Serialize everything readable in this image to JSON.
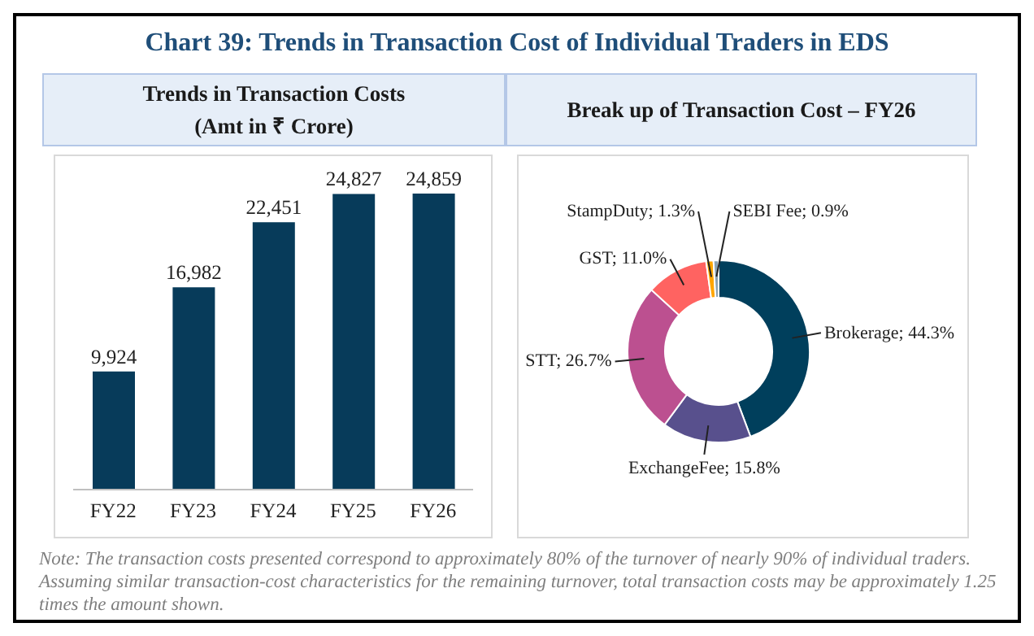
{
  "chart_data": [
    {
      "type": "bar",
      "title": "Chart 39: Trends in Transaction Cost of Individual Traders in EDS",
      "subtitle": "Trends in Transaction Costs\n(Amt in ₹ Crore)",
      "categories": [
        "FY22",
        "FY23",
        "FY24",
        "FY25",
        "FY26"
      ],
      "values": [
        9924,
        16982,
        22451,
        24827,
        24859
      ],
      "value_labels": [
        "9,924",
        "16,982",
        "22,451",
        "24,827",
        "24,859"
      ],
      "color": "#073b5a",
      "tick_labels": "x",
      "grid": false,
      "legend": false
    },
    {
      "type": "donut",
      "title": "Break up of Transaction Cost – FY26",
      "categories": [
        "Brokerage",
        "ExchangeFee",
        "STT",
        "GST",
        "StampDuty",
        "SEBI Fee"
      ],
      "values": [
        44.3,
        15.8,
        26.7,
        11.0,
        1.3,
        0.9
      ],
      "value_labels": [
        "44.3%",
        "15.8%",
        "26.7%",
        "11.0%",
        "1.3%",
        "0.9%"
      ],
      "colors": [
        "#003f5c",
        "#58508d",
        "#bc5090",
        "#ff6361",
        "#ffa600",
        "#8aa1b1"
      ],
      "legend": false,
      "annotations": [
        "Note: The transaction costs presented correspond to approximately 80% of the turnover of nearly 90% of individual traders. Assuming similar transaction-cost characteristics for the remaining turnover, total transaction costs may be approximately 1.25 times the amount shown."
      ]
    }
  ]
}
